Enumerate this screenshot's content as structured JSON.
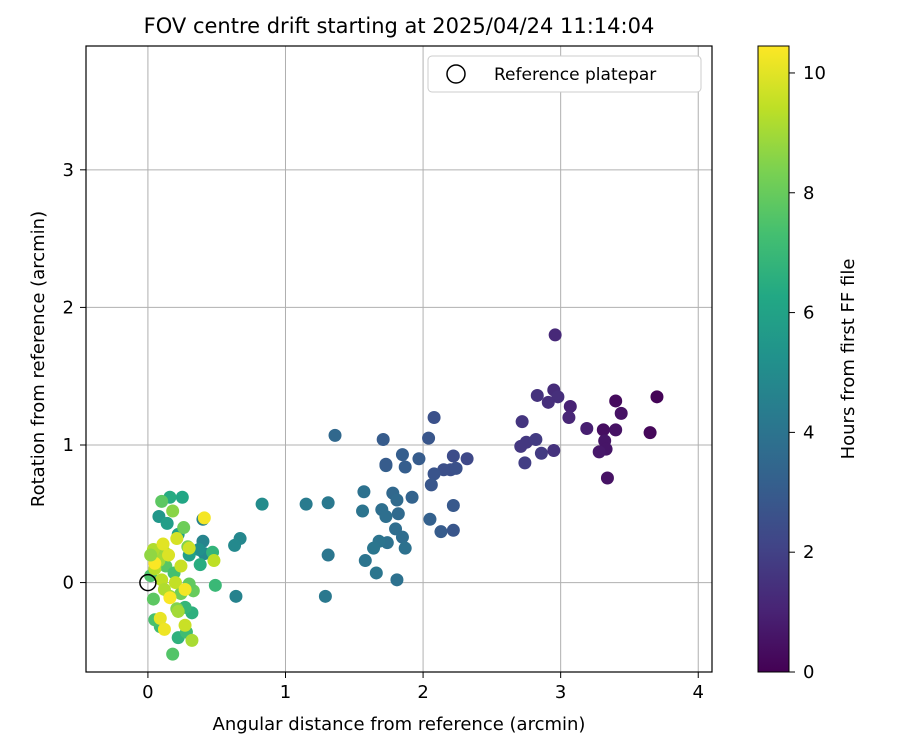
{
  "chart_data": {
    "type": "scatter",
    "title": "FOV centre drift starting at 2025/04/24 11:14:04",
    "xlabel": "Angular distance from reference (arcmin)",
    "ylabel": "Rotation from reference (arcmin)",
    "xlim": [
      -0.45,
      4.1
    ],
    "ylim": [
      -0.65,
      3.9
    ],
    "xticks": [
      0,
      1,
      2,
      3,
      4
    ],
    "yticks": [
      0,
      1,
      2,
      3
    ],
    "grid": true,
    "legend": {
      "placement": "top-right",
      "entries": [
        "Reference platepar"
      ]
    },
    "reference_point": {
      "x": 0,
      "y": 0
    },
    "colorbar": {
      "label": "Hours from first FF file",
      "range": [
        0,
        10.45
      ],
      "ticks": [
        0,
        2,
        4,
        6,
        8,
        10
      ],
      "colormap": "viridis"
    },
    "points": [
      {
        "x": 3.7,
        "y": 1.35,
        "c": 0.1
      },
      {
        "x": 3.65,
        "y": 1.09,
        "c": 0.2
      },
      {
        "x": 3.4,
        "y": 1.32,
        "c": 0.3
      },
      {
        "x": 3.44,
        "y": 1.23,
        "c": 0.5
      },
      {
        "x": 3.4,
        "y": 1.11,
        "c": 0.5
      },
      {
        "x": 3.31,
        "y": 1.11,
        "c": 0.4
      },
      {
        "x": 3.32,
        "y": 1.03,
        "c": 0.6
      },
      {
        "x": 3.33,
        "y": 0.97,
        "c": 0.6
      },
      {
        "x": 3.28,
        "y": 0.95,
        "c": 0.7
      },
      {
        "x": 3.34,
        "y": 0.76,
        "c": 0.5
      },
      {
        "x": 3.19,
        "y": 1.12,
        "c": 0.9
      },
      {
        "x": 3.07,
        "y": 1.28,
        "c": 1.0
      },
      {
        "x": 3.06,
        "y": 1.2,
        "c": 1.1
      },
      {
        "x": 2.96,
        "y": 1.8,
        "c": 1.2
      },
      {
        "x": 2.95,
        "y": 1.4,
        "c": 1.3
      },
      {
        "x": 2.98,
        "y": 1.35,
        "c": 1.4
      },
      {
        "x": 2.91,
        "y": 1.31,
        "c": 1.4
      },
      {
        "x": 2.83,
        "y": 1.36,
        "c": 1.5
      },
      {
        "x": 2.72,
        "y": 1.17,
        "c": 1.6
      },
      {
        "x": 2.75,
        "y": 1.02,
        "c": 1.7
      },
      {
        "x": 2.71,
        "y": 0.99,
        "c": 1.7
      },
      {
        "x": 2.82,
        "y": 1.04,
        "c": 1.8
      },
      {
        "x": 2.86,
        "y": 0.94,
        "c": 1.8
      },
      {
        "x": 2.95,
        "y": 0.96,
        "c": 1.5
      },
      {
        "x": 2.74,
        "y": 0.87,
        "c": 1.9
      },
      {
        "x": 2.32,
        "y": 0.9,
        "c": 2.3
      },
      {
        "x": 2.22,
        "y": 0.92,
        "c": 2.4
      },
      {
        "x": 2.2,
        "y": 0.82,
        "c": 2.5
      },
      {
        "x": 2.15,
        "y": 0.82,
        "c": 2.5
      },
      {
        "x": 2.24,
        "y": 0.83,
        "c": 2.6
      },
      {
        "x": 2.08,
        "y": 0.79,
        "c": 2.7
      },
      {
        "x": 2.06,
        "y": 0.71,
        "c": 2.8
      },
      {
        "x": 2.08,
        "y": 1.2,
        "c": 2.6
      },
      {
        "x": 2.04,
        "y": 1.05,
        "c": 2.8
      },
      {
        "x": 1.97,
        "y": 0.9,
        "c": 3.0
      },
      {
        "x": 1.85,
        "y": 0.93,
        "c": 3.1
      },
      {
        "x": 1.87,
        "y": 0.84,
        "c": 3.1
      },
      {
        "x": 1.73,
        "y": 0.85,
        "c": 3.2
      },
      {
        "x": 1.73,
        "y": 0.86,
        "c": 3.0
      },
      {
        "x": 1.71,
        "y": 1.04,
        "c": 3.0
      },
      {
        "x": 1.92,
        "y": 0.62,
        "c": 3.3
      },
      {
        "x": 2.22,
        "y": 0.56,
        "c": 2.9
      },
      {
        "x": 2.05,
        "y": 0.46,
        "c": 3.2
      },
      {
        "x": 2.13,
        "y": 0.37,
        "c": 3.0
      },
      {
        "x": 2.22,
        "y": 0.38,
        "c": 2.8
      },
      {
        "x": 1.78,
        "y": 0.65,
        "c": 3.5
      },
      {
        "x": 1.81,
        "y": 0.6,
        "c": 3.6
      },
      {
        "x": 1.82,
        "y": 0.5,
        "c": 3.6
      },
      {
        "x": 1.7,
        "y": 0.53,
        "c": 3.8
      },
      {
        "x": 1.73,
        "y": 0.48,
        "c": 3.8
      },
      {
        "x": 1.8,
        "y": 0.39,
        "c": 3.7
      },
      {
        "x": 1.85,
        "y": 0.33,
        "c": 3.7
      },
      {
        "x": 1.87,
        "y": 0.25,
        "c": 3.9
      },
      {
        "x": 1.74,
        "y": 0.29,
        "c": 3.9
      },
      {
        "x": 1.68,
        "y": 0.3,
        "c": 4.0
      },
      {
        "x": 1.64,
        "y": 0.25,
        "c": 4.1
      },
      {
        "x": 1.58,
        "y": 0.16,
        "c": 4.0
      },
      {
        "x": 1.66,
        "y": 0.07,
        "c": 4.1
      },
      {
        "x": 1.81,
        "y": 0.02,
        "c": 3.9
      },
      {
        "x": 1.57,
        "y": 0.66,
        "c": 3.9
      },
      {
        "x": 1.56,
        "y": 0.52,
        "c": 4.0
      },
      {
        "x": 1.36,
        "y": 1.07,
        "c": 3.5
      },
      {
        "x": 1.31,
        "y": 0.58,
        "c": 4.2
      },
      {
        "x": 1.15,
        "y": 0.57,
        "c": 4.3
      },
      {
        "x": 1.31,
        "y": 0.2,
        "c": 4.1
      },
      {
        "x": 1.29,
        "y": -0.1,
        "c": 4.2
      },
      {
        "x": 0.83,
        "y": 0.57,
        "c": 5.0
      },
      {
        "x": 0.67,
        "y": 0.32,
        "c": 4.8
      },
      {
        "x": 0.63,
        "y": 0.27,
        "c": 4.9
      },
      {
        "x": 0.64,
        "y": -0.1,
        "c": 4.6
      },
      {
        "x": 0.4,
        "y": 0.3,
        "c": 4.7
      },
      {
        "x": 0.41,
        "y": 0.21,
        "c": 4.9
      },
      {
        "x": 0.37,
        "y": 0.24,
        "c": 5.2
      },
      {
        "x": 0.08,
        "y": 0.48,
        "c": 5.5
      },
      {
        "x": 0.25,
        "y": 0.62,
        "c": 6.2
      },
      {
        "x": 0.16,
        "y": 0.62,
        "c": 6.4
      },
      {
        "x": 0.14,
        "y": 0.43,
        "c": 5.8
      },
      {
        "x": 0.22,
        "y": 0.35,
        "c": 6.0
      },
      {
        "x": 0.3,
        "y": 0.2,
        "c": 5.9
      },
      {
        "x": 0.38,
        "y": 0.13,
        "c": 6.5
      },
      {
        "x": 0.47,
        "y": 0.22,
        "c": 6.8
      },
      {
        "x": 0.49,
        "y": -0.02,
        "c": 7.0
      },
      {
        "x": 0.4,
        "y": 0.46,
        "c": 4.5
      },
      {
        "x": 0.32,
        "y": -0.22,
        "c": 6.6
      },
      {
        "x": 0.27,
        "y": -0.18,
        "c": 6.9
      },
      {
        "x": 0.22,
        "y": -0.4,
        "c": 6.7
      },
      {
        "x": 0.28,
        "y": -0.36,
        "c": 7.2
      },
      {
        "x": 0.18,
        "y": -0.52,
        "c": 7.6
      },
      {
        "x": 0.09,
        "y": -0.32,
        "c": 7.1
      },
      {
        "x": 0.05,
        "y": -0.27,
        "c": 7.4
      },
      {
        "x": 0.04,
        "y": -0.12,
        "c": 7.8
      },
      {
        "x": 0.02,
        "y": 0.05,
        "c": 7.5
      },
      {
        "x": 0.13,
        "y": 0.12,
        "c": 7.7
      },
      {
        "x": 0.1,
        "y": 0.59,
        "c": 7.8
      },
      {
        "x": 0.19,
        "y": 0.07,
        "c": 7.3
      },
      {
        "x": 0.26,
        "y": 0.4,
        "c": 8.1
      },
      {
        "x": 0.29,
        "y": 0.26,
        "c": 8.4
      },
      {
        "x": 0.18,
        "y": 0.52,
        "c": 8.6
      },
      {
        "x": 0.33,
        "y": -0.06,
        "c": 8.0
      },
      {
        "x": 0.3,
        "y": -0.01,
        "c": 7.9
      },
      {
        "x": 0.24,
        "y": -0.08,
        "c": 8.2
      },
      {
        "x": 0.21,
        "y": -0.19,
        "c": 8.5
      },
      {
        "x": 0.16,
        "y": -0.1,
        "c": 8.8
      },
      {
        "x": 0.12,
        "y": 0.22,
        "c": 8.9
      },
      {
        "x": 0.08,
        "y": 0.16,
        "c": 9.0
      },
      {
        "x": 0.04,
        "y": 0.24,
        "c": 9.2
      },
      {
        "x": 0.05,
        "y": 0.1,
        "c": 9.3
      },
      {
        "x": 0.1,
        "y": 0.02,
        "c": 9.4
      },
      {
        "x": 0.12,
        "y": -0.05,
        "c": 9.2
      },
      {
        "x": 0.2,
        "y": 0.0,
        "c": 9.5
      },
      {
        "x": 0.24,
        "y": 0.12,
        "c": 9.6
      },
      {
        "x": 0.3,
        "y": 0.25,
        "c": 9.7
      },
      {
        "x": 0.21,
        "y": 0.32,
        "c": 9.8
      },
      {
        "x": 0.15,
        "y": 0.2,
        "c": 9.9
      },
      {
        "x": 0.11,
        "y": 0.28,
        "c": 10.0
      },
      {
        "x": 0.09,
        "y": -0.26,
        "c": 10.1
      },
      {
        "x": 0.12,
        "y": -0.34,
        "c": 10.2
      },
      {
        "x": 0.27,
        "y": -0.31,
        "c": 9.6
      },
      {
        "x": 0.32,
        "y": -0.42,
        "c": 9.1
      },
      {
        "x": 0.27,
        "y": -0.05,
        "c": 10.3
      },
      {
        "x": 0.16,
        "y": -0.11,
        "c": 10.4
      },
      {
        "x": 0.05,
        "y": 0.14,
        "c": 10.4
      },
      {
        "x": 0.41,
        "y": 0.47,
        "c": 10.3
      },
      {
        "x": 0.48,
        "y": 0.16,
        "c": 9.4
      },
      {
        "x": 0.22,
        "y": -0.21,
        "c": 9.0
      },
      {
        "x": 0.02,
        "y": 0.2,
        "c": 8.7
      }
    ]
  }
}
